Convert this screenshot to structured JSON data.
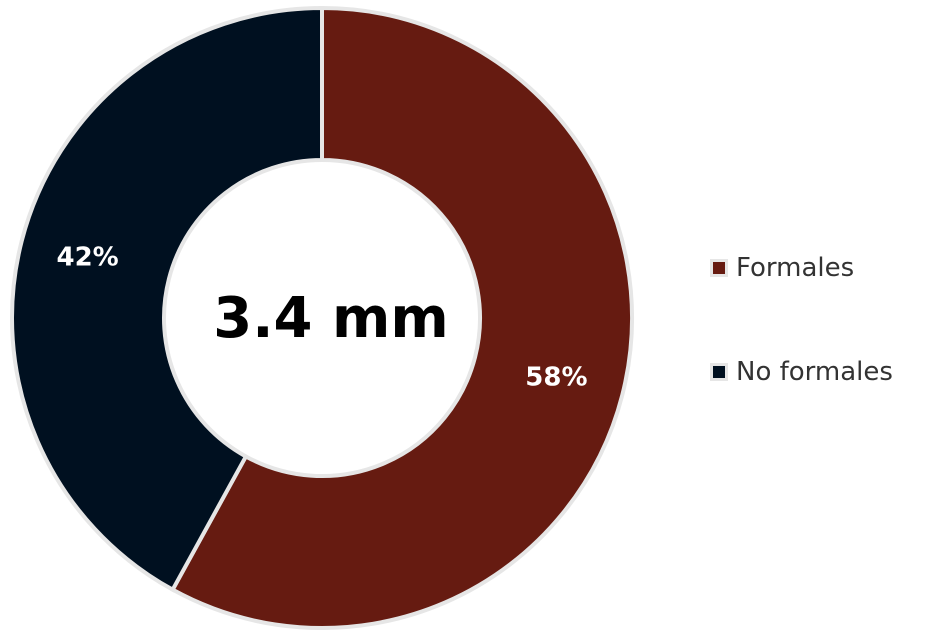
{
  "chart_data": {
    "type": "pie",
    "variant": "donut",
    "center_label": "3.4 mm",
    "slices": [
      {
        "name": "Formales",
        "value": 58,
        "label": "58%",
        "color": "#661b11"
      },
      {
        "name": "No formales",
        "value": 42,
        "label": "42%",
        "color": "#001020"
      }
    ],
    "legend": {
      "placement": "right",
      "entries": [
        "Formales",
        "No formales"
      ]
    }
  }
}
